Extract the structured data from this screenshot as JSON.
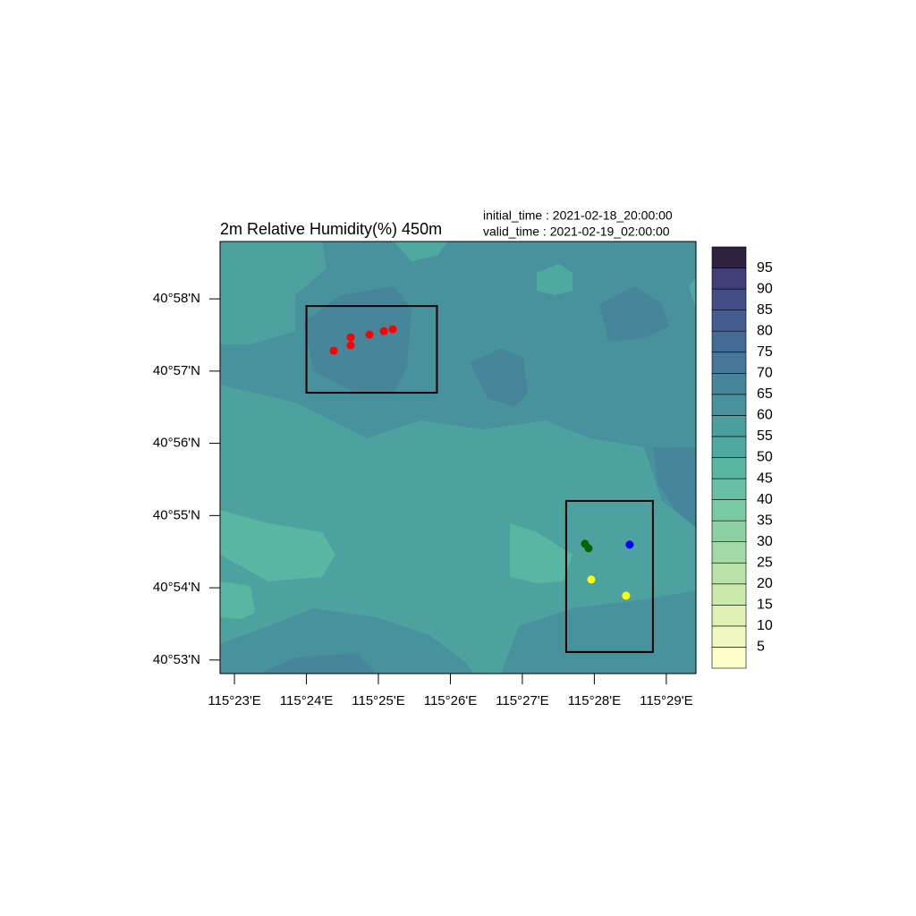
{
  "chart_data": {
    "type": "scatter",
    "title": "2m Relative Humidity(%) 450m",
    "initial_time": "initial_time :  2021-02-18_20:00:00",
    "valid_time": "valid_time  :  2021-02-19_02:00:00",
    "xlim": [
      115.38,
      115.4902
    ],
    "ylim": [
      40.8802,
      40.9799
    ],
    "xticks": [
      {
        "value": 115.383333,
        "label": "115°23'E"
      },
      {
        "value": 115.4,
        "label": "115°24'E"
      },
      {
        "value": 115.416667,
        "label": "115°25'E"
      },
      {
        "value": 115.433333,
        "label": "115°26'E"
      },
      {
        "value": 115.45,
        "label": "115°27'E"
      },
      {
        "value": 115.466667,
        "label": "115°28'E"
      },
      {
        "value": 115.483333,
        "label": "115°29'E"
      }
    ],
    "yticks": [
      {
        "value": 40.883333,
        "label": "40°53'N"
      },
      {
        "value": 40.9,
        "label": "40°54'N"
      },
      {
        "value": 40.916667,
        "label": "40°55'N"
      },
      {
        "value": 40.933333,
        "label": "40°56'N"
      },
      {
        "value": 40.95,
        "label": "40°57'N"
      },
      {
        "value": 40.966667,
        "label": "40°58'N"
      }
    ],
    "series": [
      {
        "color": "#ff0000",
        "x": [
          115.40632,
          115.41025,
          115.41025,
          115.4146,
          115.41792,
          115.41998
        ],
        "values": [
          40.9547,
          40.9578,
          40.95593,
          40.95842,
          40.95923,
          40.95965
        ]
      },
      {
        "color": "#006400",
        "x": [
          115.4645,
          115.46532
        ],
        "values": [
          40.91015,
          40.90912
        ]
      },
      {
        "color": "#0000ff",
        "x": [
          115.47485
        ],
        "values": [
          40.90995
        ]
      },
      {
        "color": "#ffff00",
        "x": [
          115.46595,
          115.47402
        ],
        "values": [
          40.9019,
          40.89818
        ]
      }
    ],
    "boxes": [
      {
        "lon": [
          115.4,
          115.43023
        ],
        "lat": [
          40.945,
          40.96502
        ]
      },
      {
        "lon": [
          115.46015,
          115.48023
        ],
        "lat": [
          40.88518,
          40.92005
        ]
      }
    ],
    "colorbar": {
      "levels": [
        5,
        10,
        15,
        20,
        25,
        30,
        35,
        40,
        45,
        50,
        55,
        60,
        65,
        70,
        75,
        80,
        85,
        90,
        95
      ],
      "colors": [
        "#ffffcc",
        "#f0f7bf",
        "#dff0b5",
        "#cdeaad",
        "#b9e2a8",
        "#a3daa4",
        "#8dd1a3",
        "#79c9a3",
        "#67c0a3",
        "#58b6a2",
        "#4eaaa0",
        "#4a9e9e",
        "#48929d",
        "#47859b",
        "#467799",
        "#466a96",
        "#455c90",
        "#434d86",
        "#3f3e76",
        "#2e2240"
      ]
    }
  }
}
